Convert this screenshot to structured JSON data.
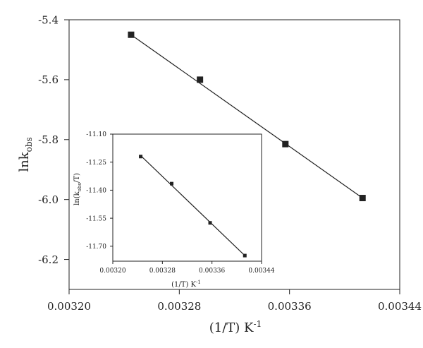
{
  "chart_data": [
    {
      "type": "scatter",
      "panel": "main",
      "title": "",
      "xlabel": "(1/T) K",
      "xlabel_sup": "-1",
      "ylabel": "lnk",
      "ylabel_sub": "obs",
      "xlim": [
        0.0032,
        0.00344
      ],
      "ylim": [
        -6.3,
        -5.4
      ],
      "x_ticks": [
        0.0032,
        0.00328,
        0.00336,
        0.00344
      ],
      "x_tick_labels": [
        "0.00320",
        "0.00328",
        "0.00336",
        "0.00344"
      ],
      "y_ticks": [
        -5.4,
        -5.6,
        -5.8,
        -6.0,
        -6.2
      ],
      "y_tick_labels": [
        "-5.4",
        "-5.6",
        "-5.8",
        "-6.0",
        "-6.2"
      ],
      "grid": false,
      "series": [
        {
          "x": [
            0.003245,
            0.003295,
            0.003357,
            0.003413
          ],
          "y": [
            -5.45,
            -5.6,
            -5.815,
            -5.995
          ],
          "marker": "square",
          "fit_line": {
            "x": [
              0.003245,
              0.003413
            ],
            "y": [
              -5.45,
              -5.995
            ]
          }
        }
      ]
    },
    {
      "type": "scatter",
      "panel": "inset",
      "title": "",
      "xlabel": "(1/T) K",
      "xlabel_sup": "-1",
      "ylabel_pre": "ln(k",
      "ylabel_sub": "obs",
      "ylabel_post": "/T)",
      "xlim": [
        0.0032,
        0.00344
      ],
      "ylim": [
        -11.78,
        -11.1
      ],
      "x_ticks": [
        0.0032,
        0.00328,
        0.00336,
        0.00344
      ],
      "x_tick_labels": [
        "0.00320",
        "0.00328",
        "0.00336",
        "0.00344"
      ],
      "y_ticks": [
        -11.1,
        -11.25,
        -11.4,
        -11.55,
        -11.7
      ],
      "y_tick_labels": [
        "-11.10",
        "-11.25",
        "-11.40",
        "-11.55",
        "-11.70"
      ],
      "grid": false,
      "series": [
        {
          "x": [
            0.003245,
            0.003295,
            0.003357,
            0.003413
          ],
          "y": [
            -11.22,
            -11.365,
            -11.575,
            -11.75
          ],
          "marker": "square",
          "fit_line": {
            "x": [
              0.003245,
              0.003413
            ],
            "y": [
              -11.215,
              -11.75
            ]
          }
        }
      ]
    }
  ],
  "colors": {
    "ink": "#222222",
    "background": "#ffffff"
  }
}
